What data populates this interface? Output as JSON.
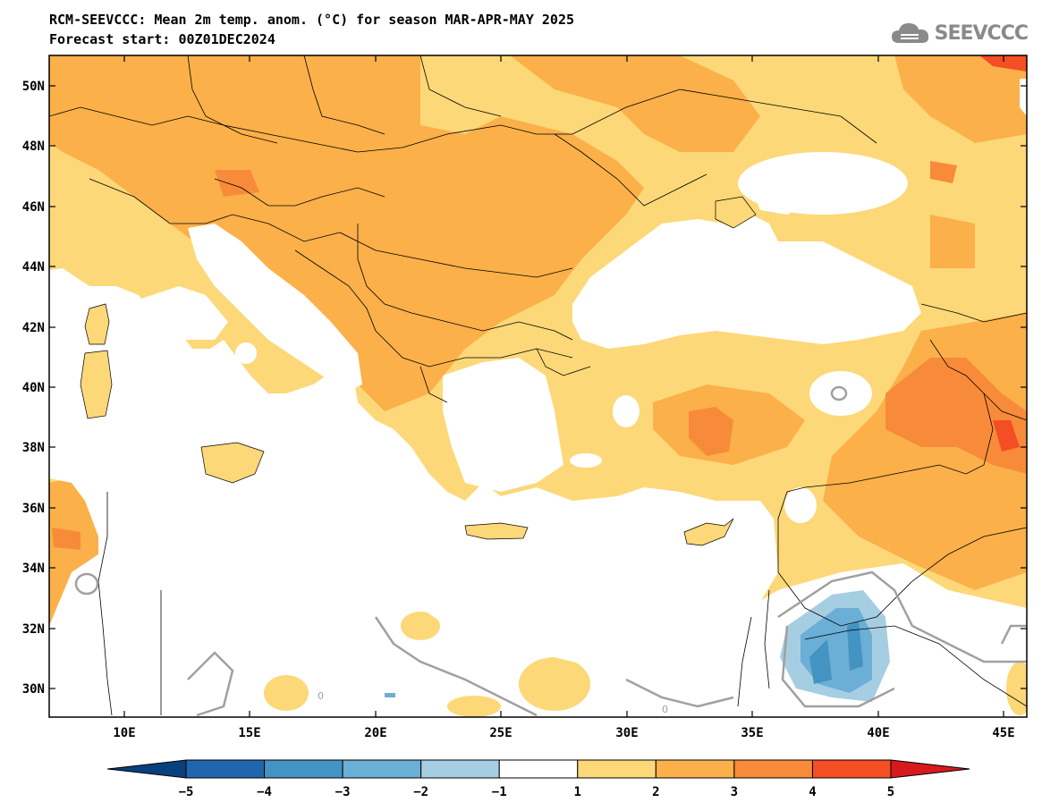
{
  "title": {
    "line1": "RCM-SEEVCCC: Mean 2m temp. anom. (°C) for season MAR-APR-MAY 2025",
    "line2": "Forecast start: 00Z01DEC2024"
  },
  "logo": {
    "text": "SEEVCCC",
    "icon": "cloud-icon"
  },
  "map": {
    "lat_labels": [
      "50N",
      "48N",
      "46N",
      "44N",
      "42N",
      "40N",
      "38N",
      "36N",
      "34N",
      "32N",
      "30N"
    ],
    "lon_labels": [
      "10E",
      "15E",
      "20E",
      "25E",
      "30E",
      "35E",
      "40E",
      "45E"
    ],
    "contour_label": "0"
  },
  "colorbar": {
    "labels": [
      "−5",
      "−4",
      "−3",
      "−2",
      "−1",
      "1",
      "2",
      "3",
      "4",
      "5"
    ],
    "colors": [
      "#0a3f7d",
      "#2166ac",
      "#4393c3",
      "#6baed6",
      "#a6cee3",
      "#ffffff",
      "#fdd878",
      "#fbb04a",
      "#f88b3a",
      "#f34e24",
      "#d7191c"
    ]
  },
  "colors": {
    "class_1_2": "#fdd878",
    "class_2_3": "#fbb04a",
    "class_3_4": "#f88b3a",
    "class_4_5": "#f34e24",
    "class_m1_m2": "#a6cee3",
    "class_m2_m3": "#6baed6",
    "class_m3_m4": "#4393c3",
    "contour_zero": "#a0a0a0"
  }
}
